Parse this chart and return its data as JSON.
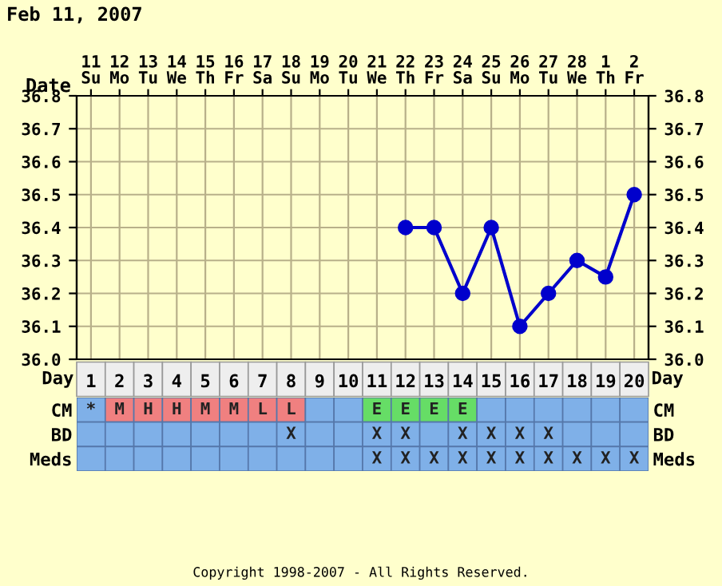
{
  "chart_data": [
    {
      "type": "line",
      "title": "Feb 11, 2007",
      "xlabel": "Date",
      "categories": [
        "11\nSu",
        "12\nMo",
        "13\nTu",
        "14\nWe",
        "15\nTh",
        "16\nFr",
        "17\nSa",
        "18\nSu",
        "19\nMo",
        "20\nTu",
        "21\nWe",
        "22\nTh",
        "23\nFr",
        "24\nSa",
        "25\nSu",
        "26\nMo",
        "27\nTu",
        "28\nWe",
        "1\nTh",
        "2\nFr"
      ],
      "series": [
        {
          "color": "#0000cc",
          "values": [
            null,
            null,
            null,
            null,
            null,
            null,
            null,
            null,
            null,
            null,
            null,
            36.4,
            36.4,
            36.2,
            36.4,
            36.1,
            36.2,
            36.3,
            36.25,
            36.5
          ]
        }
      ],
      "ylim": [
        36.0,
        36.8
      ],
      "yticks": [
        {
          "value": 36.0,
          "label": "36.0"
        },
        {
          "value": 36.1,
          "label": "36.1"
        },
        {
          "value": 36.2,
          "label": "36.2"
        },
        {
          "value": 36.3,
          "label": "36.3"
        },
        {
          "value": 36.4,
          "label": "36.4"
        },
        {
          "value": 36.5,
          "label": "36.5"
        },
        {
          "value": 36.6,
          "label": "36.6"
        },
        {
          "value": 36.7,
          "label": "36.7"
        },
        {
          "value": 36.8,
          "label": "36.8"
        }
      ],
      "y2lim": [
        36.0,
        36.8
      ],
      "y2ticks": [
        {
          "value": 36.0,
          "label": "36.0"
        },
        {
          "value": 36.1,
          "label": "36.1"
        },
        {
          "value": 36.2,
          "label": "36.2"
        },
        {
          "value": 36.3,
          "label": "36.3"
        },
        {
          "value": 36.4,
          "label": "36.4"
        },
        {
          "value": 36.5,
          "label": "36.5"
        },
        {
          "value": 36.6,
          "label": "36.6"
        },
        {
          "value": 36.7,
          "label": "36.7"
        },
        {
          "value": 36.8,
          "label": "36.8"
        }
      ],
      "grid": true,
      "marker": "circle",
      "line_style": "solid",
      "annotations": [
        "Copyright 1998-2007 - All Rights Reserved."
      ]
    },
    {
      "type": "heatmap",
      "xlabel": "Day",
      "cells": [
        [
          null,
          null,
          null,
          null,
          null,
          null,
          null,
          null,
          null,
          null,
          null,
          null,
          null,
          null,
          null,
          null,
          null,
          null,
          null,
          null
        ],
        [
          null,
          null,
          null,
          null,
          null,
          null,
          null,
          null,
          null,
          null,
          null,
          null,
          null,
          null,
          null,
          null,
          null,
          null,
          null,
          null
        ],
        [
          null,
          null,
          null,
          null,
          null,
          null,
          null,
          null,
          null,
          null,
          null,
          null,
          null,
          null,
          null,
          null,
          null,
          null,
          null,
          null
        ]
      ],
      "categories": [
        "1",
        "2",
        "3",
        "4",
        "5",
        "6",
        "7",
        "8",
        "9",
        "10",
        "11",
        "12",
        "13",
        "14",
        "15",
        "16",
        "17",
        "18",
        "19",
        "20"
      ],
      "y_categories": [
        "CM",
        "BD",
        "Meds"
      ],
      "y2_categories": [
        "CM",
        "BD",
        "Meds"
      ],
      "cell_labels": [
        [
          "*",
          "M",
          "H",
          "H",
          "M",
          "M",
          "L",
          "L",
          null,
          null,
          "E",
          "E",
          "E",
          "E",
          null,
          null,
          null,
          null,
          null,
          null
        ],
        [
          null,
          null,
          null,
          null,
          null,
          null,
          null,
          "X",
          null,
          null,
          "X",
          "X",
          null,
          "X",
          "X",
          "X",
          "X",
          null,
          null,
          null
        ],
        [
          null,
          null,
          null,
          null,
          null,
          null,
          null,
          null,
          null,
          null,
          "X",
          "X",
          "X",
          "X",
          "X",
          "X",
          "X",
          "X",
          "X",
          "X"
        ]
      ],
      "colors": [
        [
          "#7fb0e8",
          "#f08080",
          "#f08080",
          "#f08080",
          "#f08080",
          "#f08080",
          "#f08080",
          "#f08080",
          "#7fb0e8",
          "#7fb0e8",
          "#66dd66",
          "#66dd66",
          "#66dd66",
          "#66dd66",
          "#7fb0e8",
          "#7fb0e8",
          "#7fb0e8",
          "#7fb0e8",
          "#7fb0e8",
          "#7fb0e8"
        ],
        [
          "#7fb0e8",
          "#7fb0e8",
          "#7fb0e8",
          "#7fb0e8",
          "#7fb0e8",
          "#7fb0e8",
          "#7fb0e8",
          "#7fb0e8",
          "#7fb0e8",
          "#7fb0e8",
          "#7fb0e8",
          "#7fb0e8",
          "#7fb0e8",
          "#7fb0e8",
          "#7fb0e8",
          "#7fb0e8",
          "#7fb0e8",
          "#7fb0e8",
          "#7fb0e8",
          "#7fb0e8"
        ],
        [
          "#7fb0e8",
          "#7fb0e8",
          "#7fb0e8",
          "#7fb0e8",
          "#7fb0e8",
          "#7fb0e8",
          "#7fb0e8",
          "#7fb0e8",
          "#7fb0e8",
          "#7fb0e8",
          "#7fb0e8",
          "#7fb0e8",
          "#7fb0e8",
          "#7fb0e8",
          "#7fb0e8",
          "#7fb0e8",
          "#7fb0e8",
          "#7fb0e8",
          "#7fb0e8",
          "#7fb0e8"
        ]
      ]
    }
  ]
}
